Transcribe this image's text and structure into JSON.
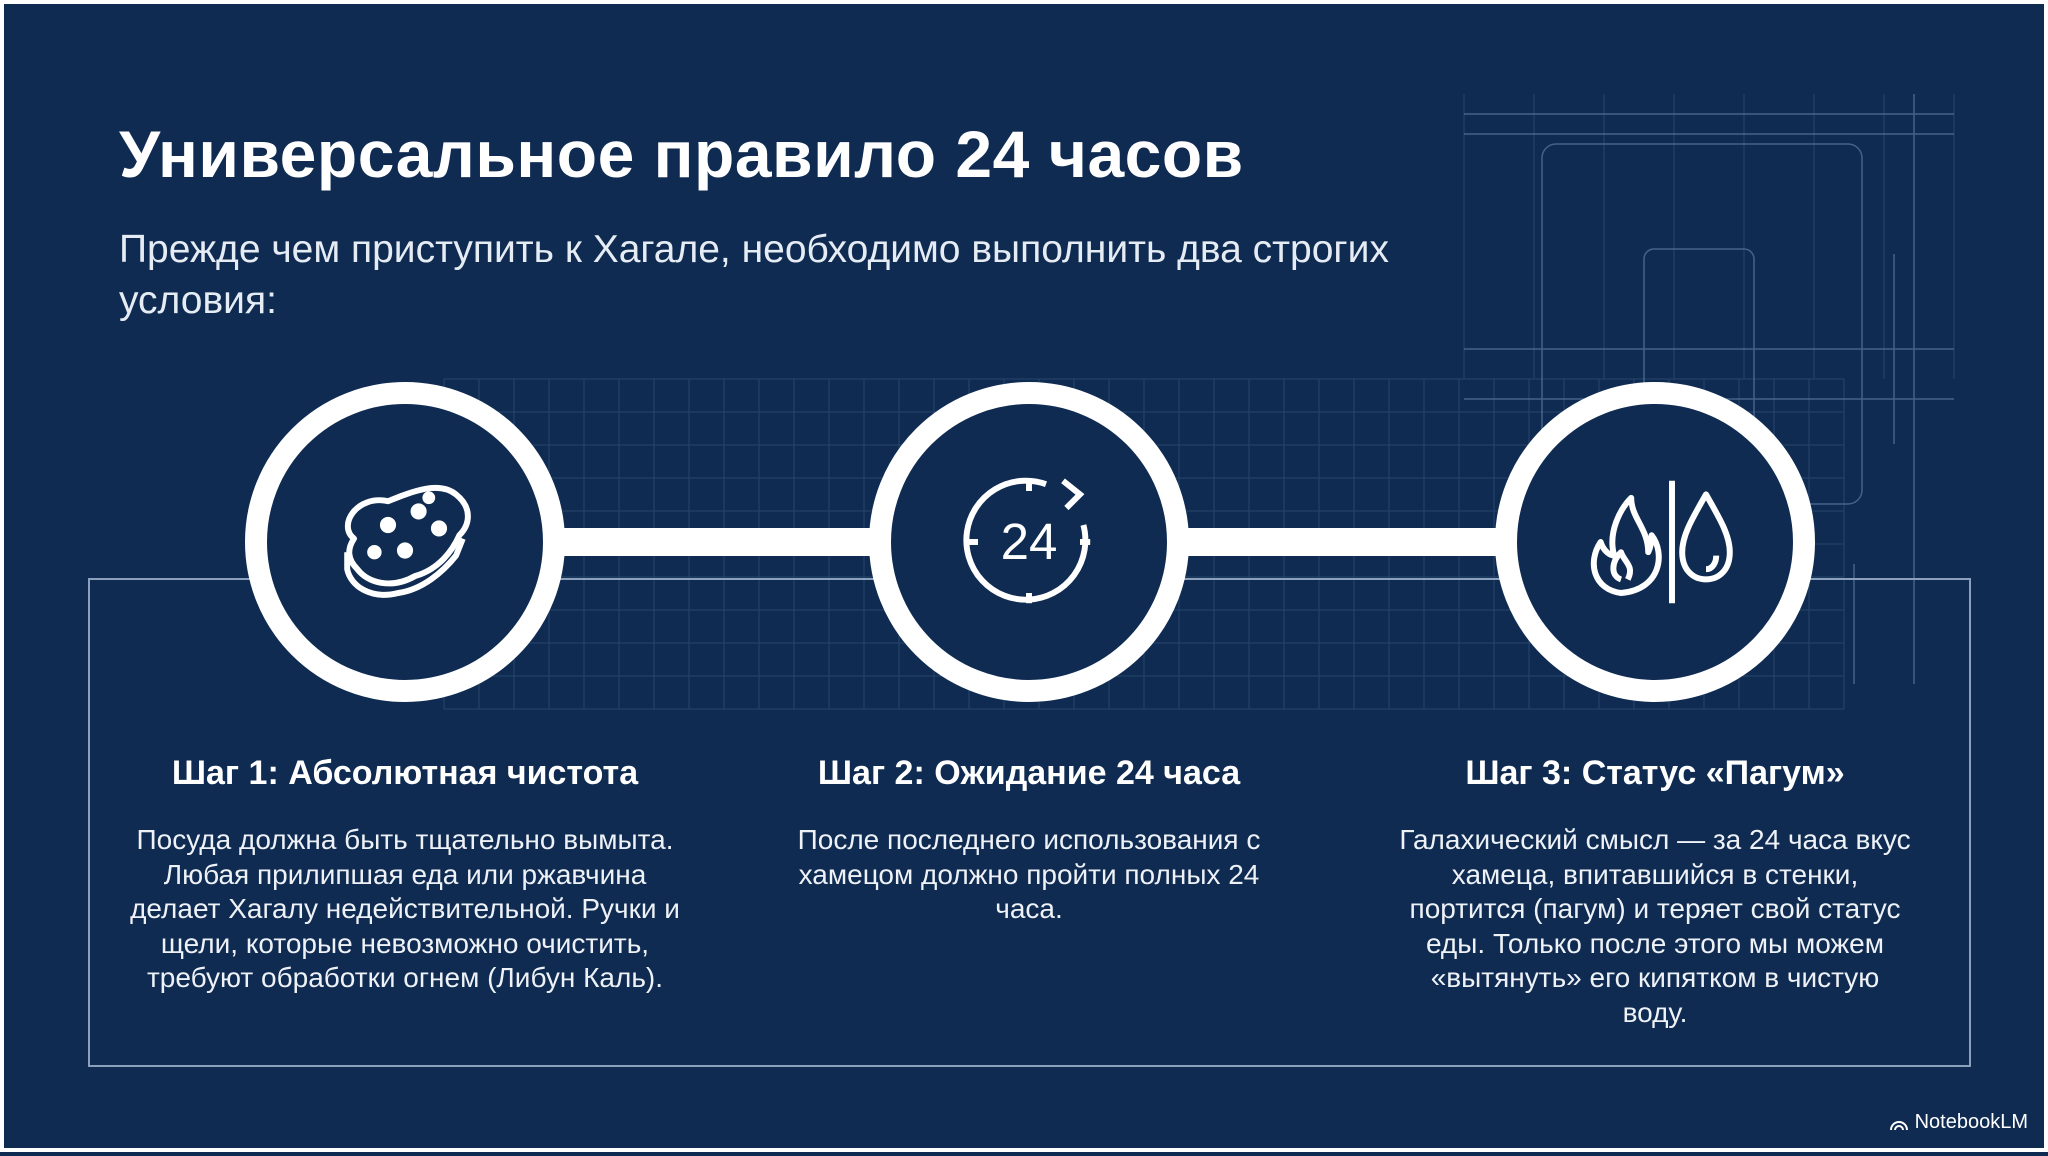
{
  "title": "Универсальное правило 24 часов",
  "subtitle": "Прежде чем приступить к Хагале, необходимо выполнить два строгих условия:",
  "steps": [
    {
      "icon": "sponge-icon",
      "heading": "Шаг 1: Абсолютная чистота",
      "body": "Посуда должна быть тщательно вымыта. Любая прилипшая еда или ржавчина делает Хагалу недействительной. Ручки и щели, которые невозможно очистить, требуют обработки огнем (Либун Каль)."
    },
    {
      "icon": "24-hour-clock-icon",
      "icon_text": "24",
      "heading": "Шаг 2: Ожидание 24 часа",
      "body": "После последнего использования с хамецом должно пройти полных 24 часа."
    },
    {
      "icon": "fire-and-water-icon",
      "heading": "Шаг 3: Статус «Пагум»",
      "body": "Галахический смысл — за 24 часа вкус хамеца, впитавшийся в стенки, портится (пагум) и теряет свой статус еды. Только после этого мы можем «вытянуть» его кипятком в чистую воду."
    }
  ],
  "brand": "NotebookLM",
  "colors": {
    "background": "#0f2b52",
    "foreground": "#ffffff"
  }
}
